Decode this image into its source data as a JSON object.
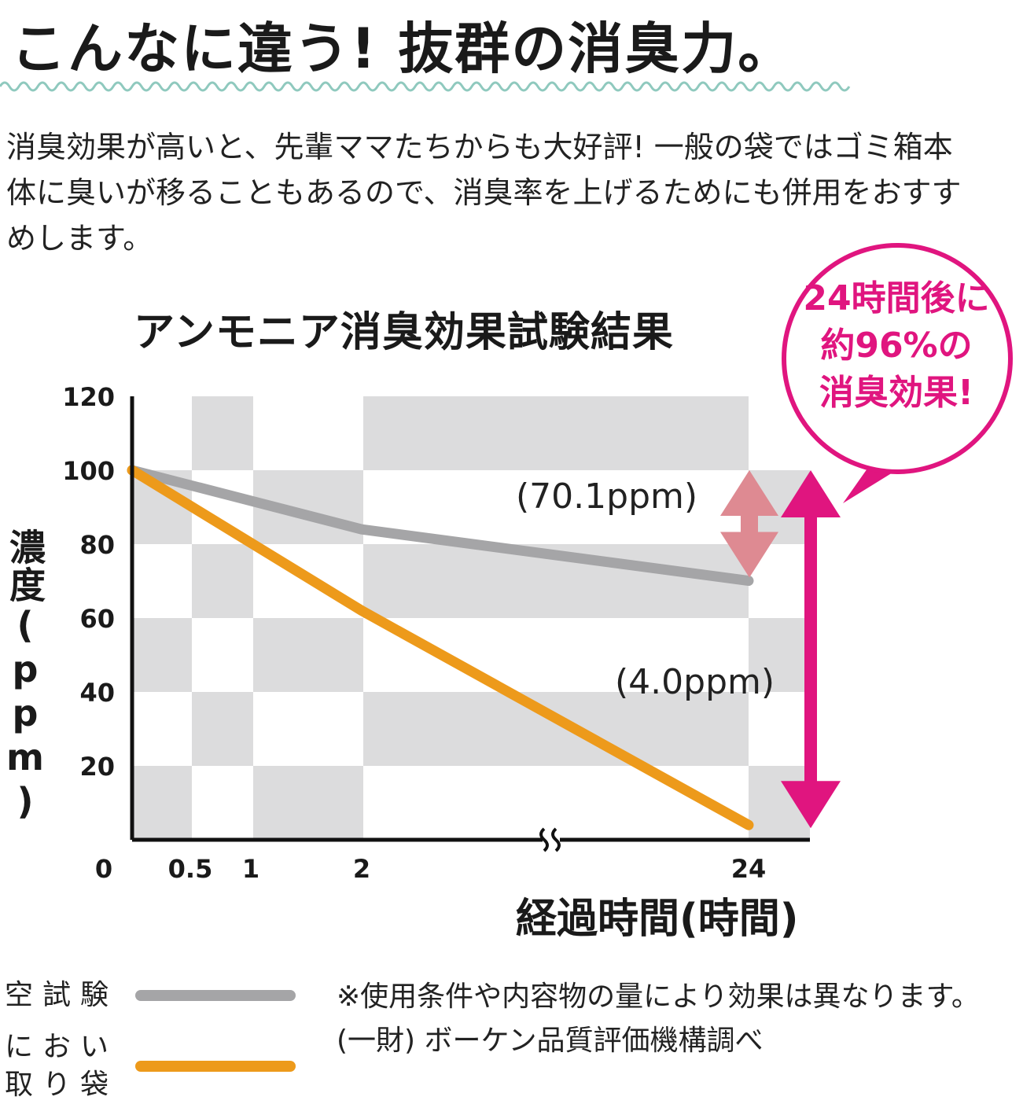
{
  "headline": "こんなに違う! 抜群の消臭力。",
  "intro": "消臭効果が高いと、先輩ママたちからも大好評! 一般の袋ではゴミ箱本体に臭いが移ることもあるので、消臭率を上げるためにも併用をおすすめします。",
  "colors": {
    "accent": "#e0157f",
    "wave": "#8fc9be",
    "grid_gray": "#dcdcdd",
    "blank_series": "#a5a5a7",
    "bag_series": "#ed9a1b",
    "small_arrow": "#de8a92"
  },
  "chart_data": {
    "type": "line",
    "title": "アンモニア消臭効果試験結果",
    "xlabel": "経過時間(時間)",
    "ylabel": "濃度(ppm)",
    "x_ticks": [
      "0",
      "0.5",
      "1",
      "2",
      "24"
    ],
    "y_ticks": [
      "20",
      "40",
      "60",
      "80",
      "100",
      "120"
    ],
    "ylim": [
      0,
      120
    ],
    "x_axis_break": "between 2 and 24",
    "grid": "checkerboard",
    "x": [
      0,
      2,
      24
    ],
    "series": [
      {
        "name": "空試験",
        "values": [
          100,
          84,
          70.1
        ]
      },
      {
        "name": "におい取り袋",
        "values": [
          100,
          62,
          4.0
        ]
      }
    ],
    "annotations": [
      "(70.1ppm)",
      "(4.0ppm)"
    ],
    "callout": "24時間後に約96%の消臭効果!"
  },
  "callout_lines": [
    "24時間後に",
    "約96%の",
    "消臭効果!"
  ],
  "legend": [
    {
      "line1": "空試験",
      "line2": ""
    },
    {
      "line1": "におい",
      "line2": "取り袋"
    }
  ],
  "footnotes": [
    "※使用条件や内容物の量により効果は異なります。",
    "(一財) ボーケン品質評価機構調べ"
  ]
}
